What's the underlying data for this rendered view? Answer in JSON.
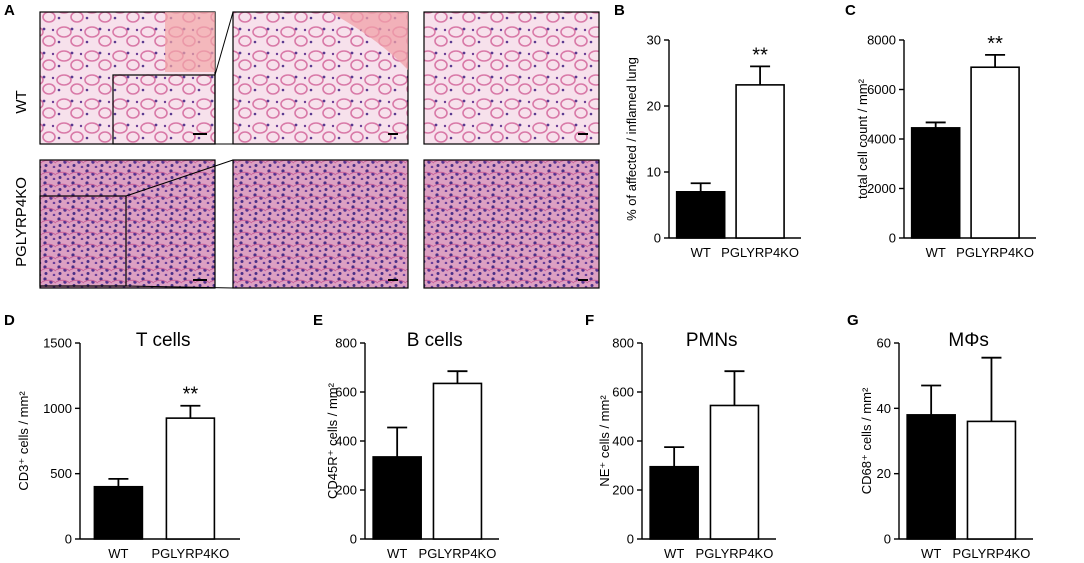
{
  "panel_letters": {
    "A": "A",
    "B": "B",
    "C": "C",
    "D": "D",
    "E": "E",
    "F": "F",
    "G": "G"
  },
  "histology": {
    "row_labels": [
      "WT",
      "PGLYRP4KO"
    ],
    "colors": {
      "wt_bg": "#f4d9e6",
      "wt_tissue": "#d86a9c",
      "ko_bg": "#e4b4cf",
      "ko_tissue": "#a63f82",
      "nuclei": "#4a2f86"
    }
  },
  "chart_data": [
    {
      "id": "B",
      "type": "bar",
      "title": "",
      "ylabel": "% of affected / inflamed lung",
      "xlabel": "",
      "categories": [
        "WT",
        "PGLYRP4KO"
      ],
      "values": [
        7,
        23.2
      ],
      "errors": [
        1.3,
        2.8
      ],
      "ylim": [
        0,
        30
      ],
      "yticks": [
        0,
        10,
        20,
        30
      ],
      "annotation": "**",
      "fills": [
        "#000000",
        "#ffffff"
      ],
      "grid": false
    },
    {
      "id": "C",
      "type": "bar",
      "title": "",
      "ylabel": "total cell count / mm²",
      "xlabel": "",
      "categories": [
        "WT",
        "PGLYRP4KO"
      ],
      "values": [
        4450,
        6900
      ],
      "errors": [
        220,
        500
      ],
      "ylim": [
        0,
        8000
      ],
      "yticks": [
        0,
        2000,
        4000,
        6000,
        8000
      ],
      "annotation": "**",
      "fills": [
        "#000000",
        "#ffffff"
      ],
      "grid": false
    },
    {
      "id": "D",
      "type": "bar",
      "title": "T cells",
      "ylabel": "CD3⁺ cells / mm²",
      "xlabel": "",
      "categories": [
        "WT",
        "PGLYRP4KO"
      ],
      "values": [
        400,
        925
      ],
      "errors": [
        60,
        95
      ],
      "ylim": [
        0,
        1500
      ],
      "yticks": [
        0,
        500,
        1000,
        1500
      ],
      "annotation": "**",
      "fills": [
        "#000000",
        "#ffffff"
      ],
      "grid": false
    },
    {
      "id": "E",
      "type": "bar",
      "title": "B cells",
      "ylabel": "CD45R⁺ cells / mm²",
      "xlabel": "",
      "categories": [
        "WT",
        "PGLYRP4KO"
      ],
      "values": [
        335,
        635
      ],
      "errors": [
        120,
        50
      ],
      "ylim": [
        0,
        800
      ],
      "yticks": [
        0,
        200,
        400,
        600,
        800
      ],
      "annotation": "",
      "fills": [
        "#000000",
        "#ffffff"
      ],
      "grid": false
    },
    {
      "id": "F",
      "type": "bar",
      "title": "PMNs",
      "ylabel": "NE⁺ cells / mm²",
      "xlabel": "",
      "categories": [
        "WT",
        "PGLYRP4KO"
      ],
      "values": [
        295,
        545
      ],
      "errors": [
        80,
        140
      ],
      "ylim": [
        0,
        800
      ],
      "yticks": [
        0,
        200,
        400,
        600,
        800
      ],
      "annotation": "",
      "fills": [
        "#000000",
        "#ffffff"
      ],
      "grid": false
    },
    {
      "id": "G",
      "type": "bar",
      "title": "MΦs",
      "ylabel": "CD68⁺ cells / mm²",
      "xlabel": "",
      "categories": [
        "WT",
        "PGLYRP4KO"
      ],
      "values": [
        38,
        36
      ],
      "errors": [
        9,
        19.5
      ],
      "ylim": [
        0,
        60
      ],
      "yticks": [
        0,
        20,
        40,
        60
      ],
      "annotation": "",
      "fills": [
        "#000000",
        "#ffffff"
      ],
      "grid": false
    }
  ]
}
